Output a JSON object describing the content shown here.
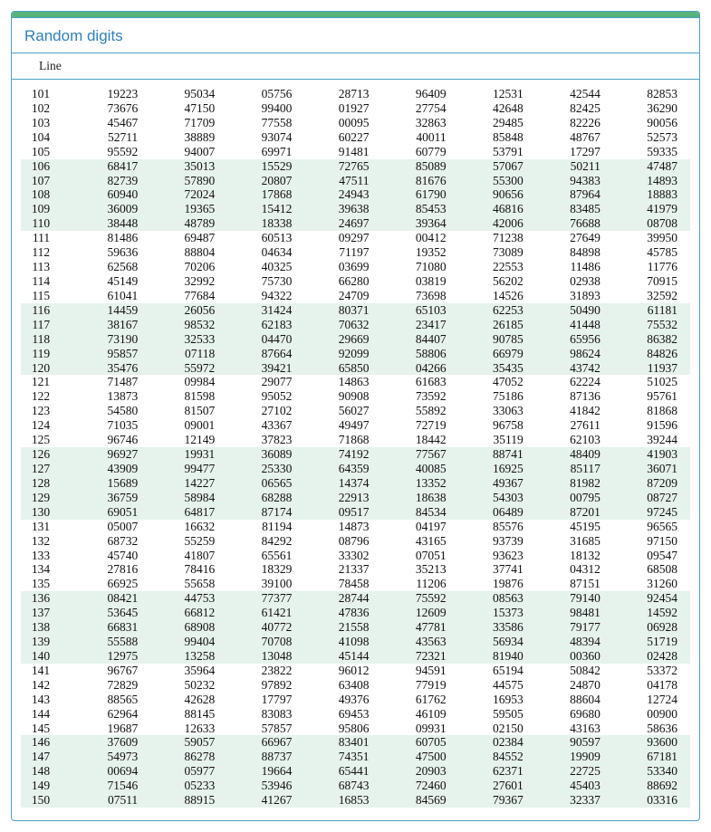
{
  "title": "Random digits",
  "line_header": "Line",
  "colors": {
    "accent_border": "#4e9fc9",
    "topbar": "#56b47a",
    "title_text": "#2f80b8",
    "band_bg": "#e6f2ec",
    "text": "#111111",
    "background": "#ffffff"
  },
  "typography": {
    "title_font": "Arial",
    "title_size_pt": 13,
    "body_font": "Times New Roman",
    "body_size_pt": 10
  },
  "band_size": 5,
  "columns_per_row": 8,
  "rows": [
    {
      "line": "101",
      "cols": [
        "19223",
        "95034",
        "05756",
        "28713",
        "96409",
        "12531",
        "42544",
        "82853"
      ]
    },
    {
      "line": "102",
      "cols": [
        "73676",
        "47150",
        "99400",
        "01927",
        "27754",
        "42648",
        "82425",
        "36290"
      ]
    },
    {
      "line": "103",
      "cols": [
        "45467",
        "71709",
        "77558",
        "00095",
        "32863",
        "29485",
        "82226",
        "90056"
      ]
    },
    {
      "line": "104",
      "cols": [
        "52711",
        "38889",
        "93074",
        "60227",
        "40011",
        "85848",
        "48767",
        "52573"
      ]
    },
    {
      "line": "105",
      "cols": [
        "95592",
        "94007",
        "69971",
        "91481",
        "60779",
        "53791",
        "17297",
        "59335"
      ]
    },
    {
      "line": "106",
      "cols": [
        "68417",
        "35013",
        "15529",
        "72765",
        "85089",
        "57067",
        "50211",
        "47487"
      ]
    },
    {
      "line": "107",
      "cols": [
        "82739",
        "57890",
        "20807",
        "47511",
        "81676",
        "55300",
        "94383",
        "14893"
      ]
    },
    {
      "line": "108",
      "cols": [
        "60940",
        "72024",
        "17868",
        "24943",
        "61790",
        "90656",
        "87964",
        "18883"
      ]
    },
    {
      "line": "109",
      "cols": [
        "36009",
        "19365",
        "15412",
        "39638",
        "85453",
        "46816",
        "83485",
        "41979"
      ]
    },
    {
      "line": "110",
      "cols": [
        "38448",
        "48789",
        "18338",
        "24697",
        "39364",
        "42006",
        "76688",
        "08708"
      ]
    },
    {
      "line": "111",
      "cols": [
        "81486",
        "69487",
        "60513",
        "09297",
        "00412",
        "71238",
        "27649",
        "39950"
      ]
    },
    {
      "line": "112",
      "cols": [
        "59636",
        "88804",
        "04634",
        "71197",
        "19352",
        "73089",
        "84898",
        "45785"
      ]
    },
    {
      "line": "113",
      "cols": [
        "62568",
        "70206",
        "40325",
        "03699",
        "71080",
        "22553",
        "11486",
        "11776"
      ]
    },
    {
      "line": "114",
      "cols": [
        "45149",
        "32992",
        "75730",
        "66280",
        "03819",
        "56202",
        "02938",
        "70915"
      ]
    },
    {
      "line": "115",
      "cols": [
        "61041",
        "77684",
        "94322",
        "24709",
        "73698",
        "14526",
        "31893",
        "32592"
      ]
    },
    {
      "line": "116",
      "cols": [
        "14459",
        "26056",
        "31424",
        "80371",
        "65103",
        "62253",
        "50490",
        "61181"
      ]
    },
    {
      "line": "117",
      "cols": [
        "38167",
        "98532",
        "62183",
        "70632",
        "23417",
        "26185",
        "41448",
        "75532"
      ]
    },
    {
      "line": "118",
      "cols": [
        "73190",
        "32533",
        "04470",
        "29669",
        "84407",
        "90785",
        "65956",
        "86382"
      ]
    },
    {
      "line": "119",
      "cols": [
        "95857",
        "07118",
        "87664",
        "92099",
        "58806",
        "66979",
        "98624",
        "84826"
      ]
    },
    {
      "line": "120",
      "cols": [
        "35476",
        "55972",
        "39421",
        "65850",
        "04266",
        "35435",
        "43742",
        "11937"
      ]
    },
    {
      "line": "121",
      "cols": [
        "71487",
        "09984",
        "29077",
        "14863",
        "61683",
        "47052",
        "62224",
        "51025"
      ]
    },
    {
      "line": "122",
      "cols": [
        "13873",
        "81598",
        "95052",
        "90908",
        "73592",
        "75186",
        "87136",
        "95761"
      ]
    },
    {
      "line": "123",
      "cols": [
        "54580",
        "81507",
        "27102",
        "56027",
        "55892",
        "33063",
        "41842",
        "81868"
      ]
    },
    {
      "line": "124",
      "cols": [
        "71035",
        "09001",
        "43367",
        "49497",
        "72719",
        "96758",
        "27611",
        "91596"
      ]
    },
    {
      "line": "125",
      "cols": [
        "96746",
        "12149",
        "37823",
        "71868",
        "18442",
        "35119",
        "62103",
        "39244"
      ]
    },
    {
      "line": "126",
      "cols": [
        "96927",
        "19931",
        "36089",
        "74192",
        "77567",
        "88741",
        "48409",
        "41903"
      ]
    },
    {
      "line": "127",
      "cols": [
        "43909",
        "99477",
        "25330",
        "64359",
        "40085",
        "16925",
        "85117",
        "36071"
      ]
    },
    {
      "line": "128",
      "cols": [
        "15689",
        "14227",
        "06565",
        "14374",
        "13352",
        "49367",
        "81982",
        "87209"
      ]
    },
    {
      "line": "129",
      "cols": [
        "36759",
        "58984",
        "68288",
        "22913",
        "18638",
        "54303",
        "00795",
        "08727"
      ]
    },
    {
      "line": "130",
      "cols": [
        "69051",
        "64817",
        "87174",
        "09517",
        "84534",
        "06489",
        "87201",
        "97245"
      ]
    },
    {
      "line": "131",
      "cols": [
        "05007",
        "16632",
        "81194",
        "14873",
        "04197",
        "85576",
        "45195",
        "96565"
      ]
    },
    {
      "line": "132",
      "cols": [
        "68732",
        "55259",
        "84292",
        "08796",
        "43165",
        "93739",
        "31685",
        "97150"
      ]
    },
    {
      "line": "133",
      "cols": [
        "45740",
        "41807",
        "65561",
        "33302",
        "07051",
        "93623",
        "18132",
        "09547"
      ]
    },
    {
      "line": "134",
      "cols": [
        "27816",
        "78416",
        "18329",
        "21337",
        "35213",
        "37741",
        "04312",
        "68508"
      ]
    },
    {
      "line": "135",
      "cols": [
        "66925",
        "55658",
        "39100",
        "78458",
        "11206",
        "19876",
        "87151",
        "31260"
      ]
    },
    {
      "line": "136",
      "cols": [
        "08421",
        "44753",
        "77377",
        "28744",
        "75592",
        "08563",
        "79140",
        "92454"
      ]
    },
    {
      "line": "137",
      "cols": [
        "53645",
        "66812",
        "61421",
        "47836",
        "12609",
        "15373",
        "98481",
        "14592"
      ]
    },
    {
      "line": "138",
      "cols": [
        "66831",
        "68908",
        "40772",
        "21558",
        "47781",
        "33586",
        "79177",
        "06928"
      ]
    },
    {
      "line": "139",
      "cols": [
        "55588",
        "99404",
        "70708",
        "41098",
        "43563",
        "56934",
        "48394",
        "51719"
      ]
    },
    {
      "line": "140",
      "cols": [
        "12975",
        "13258",
        "13048",
        "45144",
        "72321",
        "81940",
        "00360",
        "02428"
      ]
    },
    {
      "line": "141",
      "cols": [
        "96767",
        "35964",
        "23822",
        "96012",
        "94591",
        "65194",
        "50842",
        "53372"
      ]
    },
    {
      "line": "142",
      "cols": [
        "72829",
        "50232",
        "97892",
        "63408",
        "77919",
        "44575",
        "24870",
        "04178"
      ]
    },
    {
      "line": "143",
      "cols": [
        "88565",
        "42628",
        "17797",
        "49376",
        "61762",
        "16953",
        "88604",
        "12724"
      ]
    },
    {
      "line": "144",
      "cols": [
        "62964",
        "88145",
        "83083",
        "69453",
        "46109",
        "59505",
        "69680",
        "00900"
      ]
    },
    {
      "line": "145",
      "cols": [
        "19687",
        "12633",
        "57857",
        "95806",
        "09931",
        "02150",
        "43163",
        "58636"
      ]
    },
    {
      "line": "146",
      "cols": [
        "37609",
        "59057",
        "66967",
        "83401",
        "60705",
        "02384",
        "90597",
        "93600"
      ]
    },
    {
      "line": "147",
      "cols": [
        "54973",
        "86278",
        "88737",
        "74351",
        "47500",
        "84552",
        "19909",
        "67181"
      ]
    },
    {
      "line": "148",
      "cols": [
        "00694",
        "05977",
        "19664",
        "65441",
        "20903",
        "62371",
        "22725",
        "53340"
      ]
    },
    {
      "line": "149",
      "cols": [
        "71546",
        "05233",
        "53946",
        "68743",
        "72460",
        "27601",
        "45403",
        "88692"
      ]
    },
    {
      "line": "150",
      "cols": [
        "07511",
        "88915",
        "41267",
        "16853",
        "84569",
        "79367",
        "32337",
        "03316"
      ]
    }
  ]
}
